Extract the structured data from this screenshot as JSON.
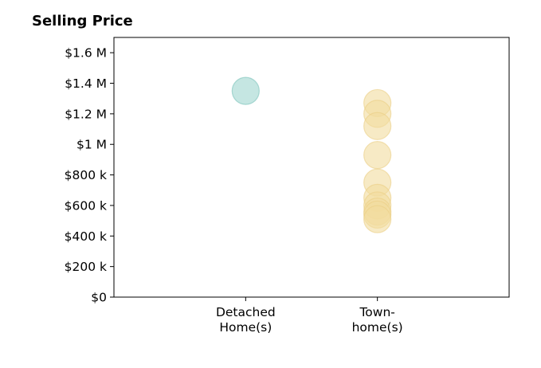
{
  "chart_data": {
    "type": "scatter",
    "title": "Selling Price",
    "xlabel": "",
    "ylabel": "",
    "categories": [
      [
        "Detached",
        "Home(s)"
      ],
      [
        "Town-",
        "home(s)"
      ]
    ],
    "yticks": [
      {
        "value": 0,
        "label": "$0"
      },
      {
        "value": 200000,
        "label": "$200 k"
      },
      {
        "value": 400000,
        "label": "$400 k"
      },
      {
        "value": 600000,
        "label": "$600 k"
      },
      {
        "value": 800000,
        "label": "$800 k"
      },
      {
        "value": 1000000,
        "label": "$1 M"
      },
      {
        "value": 1200000,
        "label": "$1.2 M"
      },
      {
        "value": 1400000,
        "label": "$1.4 M"
      },
      {
        "value": 1600000,
        "label": "$1.6 M"
      }
    ],
    "ylim": [
      0,
      1700000
    ],
    "xlim": [
      -1,
      2
    ],
    "grid": false,
    "series": [
      {
        "category": 0,
        "color": "#9fd6cf",
        "stroke": "#7cc3ba",
        "values": [
          1350000
        ]
      },
      {
        "category": 1,
        "color": "#f2dc9f",
        "stroke": "#ebcf85",
        "values": [
          1270000,
          1200000,
          1120000,
          930000,
          750000,
          650000,
          600000,
          560000,
          540000,
          510000
        ]
      }
    ]
  }
}
